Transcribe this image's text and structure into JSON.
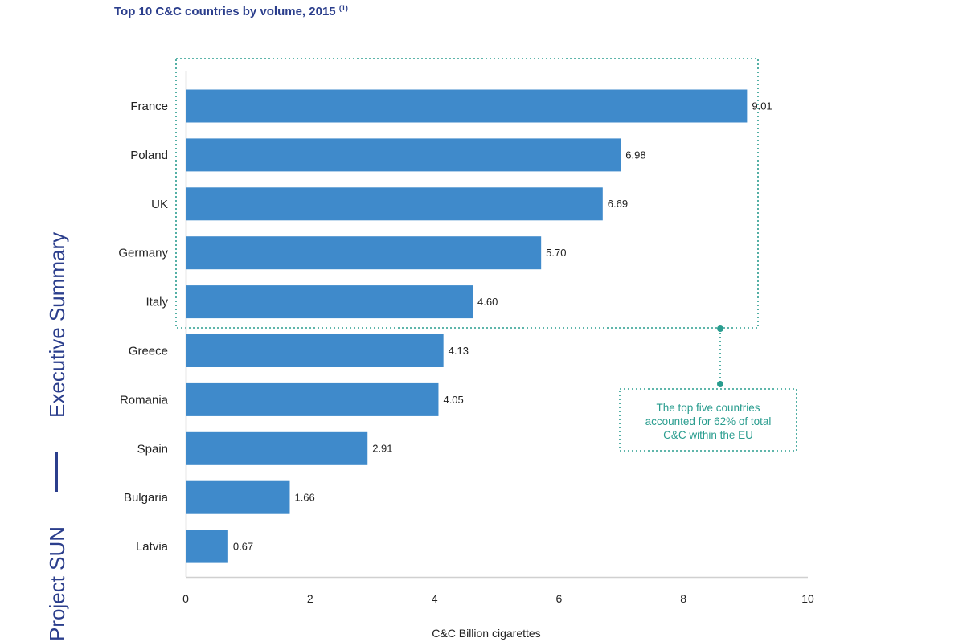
{
  "sidebar": {
    "section": "Executive Summary",
    "project": "Project SUN",
    "colors": {
      "text": "#2b3e8c"
    }
  },
  "chart_data": {
    "type": "bar",
    "orientation": "horizontal",
    "title": "Top 10 C&C countries by volume, 2015",
    "title_footnote": "(1)",
    "categories": [
      "France",
      "Poland",
      "UK",
      "Germany",
      "Italy",
      "Greece",
      "Romania",
      "Spain",
      "Bulgaria",
      "Latvia"
    ],
    "values": [
      9.01,
      6.98,
      6.69,
      5.7,
      4.6,
      4.13,
      4.05,
      2.91,
      1.66,
      0.67
    ],
    "value_labels": [
      "9.01",
      "6.98",
      "6.69",
      "5.70",
      "4.60",
      "4.13",
      "4.05",
      "2.91",
      "1.66",
      "0.67"
    ],
    "xlabel": "C&C Billion cigarettes",
    "xlim": [
      0,
      10
    ],
    "xticks": [
      0,
      2,
      4,
      6,
      8,
      10
    ],
    "xtick_labels": [
      "0",
      "2",
      "4",
      "6",
      "8",
      "10"
    ],
    "grid": false,
    "colors": {
      "bar": "#3f8acb",
      "title": "#2b3e8c",
      "callout": "#2a9d8f"
    },
    "annotation": {
      "highlight_categories": [
        "France",
        "Poland",
        "UK",
        "Germany",
        "Italy"
      ],
      "lines": [
        "The top five countries",
        "accounted for 62% of total",
        "C&C within the EU"
      ]
    }
  }
}
